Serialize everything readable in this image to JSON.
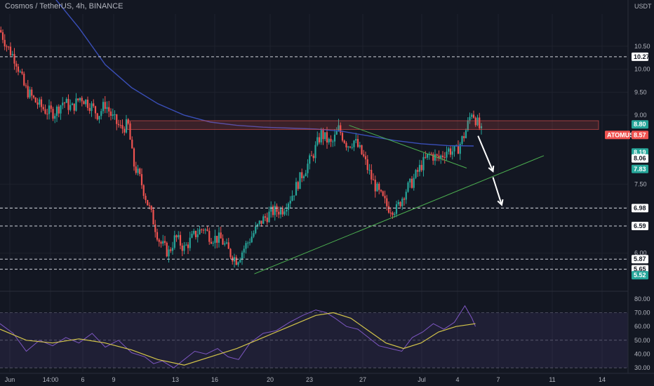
{
  "header": {
    "title": "Cosmos / TetherUS, 4h, BINANCE",
    "currency": "USDT"
  },
  "colors": {
    "background": "#131722",
    "grid": "#1e222d",
    "bull": "#26a69a",
    "bear": "#ef5350",
    "ma": "#3a4fb8",
    "trendline": "#4caf50",
    "zone": "#ef5350",
    "rsi": "#7e57c2",
    "rsi_ma": "#d4c54a",
    "rsi_band": "#7e57c2",
    "arrow": "#ffffff"
  },
  "price_axis": {
    "ticks": [
      "10.50",
      "10.00",
      "9.50",
      "9.00",
      "7.50",
      "7.00",
      "6.00"
    ],
    "tick_values": [
      10.5,
      10.0,
      9.5,
      9.0,
      7.5,
      7.0,
      6.0
    ],
    "ylim": [
      5.4,
      11.2
    ]
  },
  "rsi_axis": {
    "ticks": [
      "80.00",
      "70.00",
      "60.00",
      "50.00",
      "40.00",
      "30.00"
    ],
    "tick_values": [
      80,
      70,
      60,
      50,
      40,
      30
    ],
    "ylim": [
      27,
      84
    ]
  },
  "time_axis": {
    "labels": [
      "Jun",
      "14:00",
      "6",
      "9",
      "13",
      "16",
      "20",
      "23",
      "27",
      "Jul",
      "4",
      "7",
      "11",
      "14"
    ]
  },
  "price_tags": [
    {
      "label": "10.27",
      "value": 10.27,
      "style": "white",
      "dashed": true
    },
    {
      "label": "8.80",
      "value": 8.8,
      "style": "green",
      "dashed": false
    },
    {
      "label": "ATOMUSDT",
      "value": 8.57,
      "style": "red-name",
      "dashed": false
    },
    {
      "label": "8.57",
      "value": 8.57,
      "style": "red",
      "dashed": false
    },
    {
      "label": "8.19",
      "value": 8.19,
      "style": "green",
      "dashed": false
    },
    {
      "label": "8.06",
      "value": 8.06,
      "style": "white",
      "dashed": false
    },
    {
      "label": "7.83",
      "value": 7.83,
      "style": "green",
      "dashed": false
    },
    {
      "label": "6.98",
      "value": 6.98,
      "style": "white",
      "dashed": true
    },
    {
      "label": "6.59",
      "value": 6.59,
      "style": "white",
      "dashed": true
    },
    {
      "label": "5.87",
      "value": 5.87,
      "style": "white",
      "dashed": true
    },
    {
      "label": "5.65",
      "value": 5.65,
      "style": "white",
      "dashed": true
    },
    {
      "label": "5.52",
      "value": 5.52,
      "style": "green",
      "dashed": false
    }
  ],
  "chart_data": {
    "type": "candlestick",
    "title": "Cosmos / TetherUS, 4h, BINANCE",
    "price_path": [
      [
        0,
        10.85
      ],
      [
        8,
        10.5
      ],
      [
        18,
        10.2
      ],
      [
        28,
        9.6
      ],
      [
        40,
        9.3
      ],
      [
        52,
        9.1
      ],
      [
        62,
        9.05
      ],
      [
        72,
        9.3
      ],
      [
        82,
        9.15
      ],
      [
        92,
        9.4
      ],
      [
        104,
        9.2
      ],
      [
        112,
        9.0
      ],
      [
        120,
        9.25
      ],
      [
        128,
        8.95
      ],
      [
        138,
        8.7
      ],
      [
        146,
        8.8
      ],
      [
        152,
        7.95
      ],
      [
        160,
        7.6
      ],
      [
        168,
        7.1
      ],
      [
        174,
        6.75
      ],
      [
        182,
        6.25
      ],
      [
        192,
        6.0
      ],
      [
        200,
        6.35
      ],
      [
        210,
        6.1
      ],
      [
        222,
        6.4
      ],
      [
        232,
        6.55
      ],
      [
        240,
        6.35
      ],
      [
        252,
        6.3
      ],
      [
        262,
        6.0
      ],
      [
        270,
        5.85
      ],
      [
        278,
        6.1
      ],
      [
        288,
        6.4
      ],
      [
        298,
        6.7
      ],
      [
        310,
        6.9
      ],
      [
        322,
        6.95
      ],
      [
        334,
        7.3
      ],
      [
        344,
        7.7
      ],
      [
        356,
        8.1
      ],
      [
        366,
        8.6
      ],
      [
        378,
        8.35
      ],
      [
        386,
        8.7
      ],
      [
        396,
        8.35
      ],
      [
        404,
        8.45
      ],
      [
        414,
        8.1
      ],
      [
        424,
        7.6
      ],
      [
        432,
        7.3
      ],
      [
        442,
        7.0
      ],
      [
        452,
        6.95
      ],
      [
        462,
        7.35
      ],
      [
        470,
        7.55
      ],
      [
        480,
        7.9
      ],
      [
        490,
        8.15
      ],
      [
        500,
        8.05
      ],
      [
        510,
        8.25
      ],
      [
        520,
        8.2
      ],
      [
        530,
        8.6
      ],
      [
        538,
        9.1
      ],
      [
        546,
        8.75
      ],
      [
        550,
        8.57
      ]
    ],
    "ma_path": [
      [
        30,
        12.5
      ],
      [
        60,
        11.6
      ],
      [
        90,
        10.9
      ],
      [
        120,
        10.1
      ],
      [
        150,
        9.6
      ],
      [
        180,
        9.25
      ],
      [
        210,
        9.0
      ],
      [
        240,
        8.85
      ],
      [
        270,
        8.78
      ],
      [
        300,
        8.74
      ],
      [
        330,
        8.72
      ],
      [
        360,
        8.7
      ],
      [
        390,
        8.65
      ],
      [
        420,
        8.55
      ],
      [
        450,
        8.45
      ],
      [
        480,
        8.38
      ],
      [
        510,
        8.34
      ],
      [
        540,
        8.33
      ]
    ],
    "resistance_zone": [
      8.69,
      8.88
    ],
    "trendlines": [
      {
        "from": [
          290,
          5.55
        ],
        "to": [
          620,
          8.12
        ]
      },
      {
        "from": [
          398,
          8.78
        ],
        "to": [
          532,
          7.85
        ]
      }
    ],
    "projection_arrows": [
      {
        "from": [
          545,
          8.55
        ],
        "to": [
          562,
          7.78
        ]
      },
      {
        "from": [
          562,
          7.65
        ],
        "to": [
          572,
          7.05
        ]
      }
    ],
    "rsi_path": [
      [
        0,
        62
      ],
      [
        15,
        55
      ],
      [
        30,
        42
      ],
      [
        45,
        50
      ],
      [
        60,
        46
      ],
      [
        75,
        52
      ],
      [
        90,
        48
      ],
      [
        105,
        55
      ],
      [
        120,
        45
      ],
      [
        135,
        50
      ],
      [
        150,
        41
      ],
      [
        165,
        38
      ],
      [
        175,
        33
      ],
      [
        185,
        35
      ],
      [
        198,
        30
      ],
      [
        210,
        36
      ],
      [
        222,
        42
      ],
      [
        235,
        40
      ],
      [
        248,
        44
      ],
      [
        260,
        38
      ],
      [
        272,
        36
      ],
      [
        285,
        48
      ],
      [
        300,
        55
      ],
      [
        315,
        57
      ],
      [
        330,
        63
      ],
      [
        345,
        68
      ],
      [
        360,
        72
      ],
      [
        372,
        70
      ],
      [
        382,
        66
      ],
      [
        395,
        60
      ],
      [
        408,
        58
      ],
      [
        420,
        52
      ],
      [
        432,
        46
      ],
      [
        445,
        44
      ],
      [
        458,
        42
      ],
      [
        470,
        52
      ],
      [
        482,
        56
      ],
      [
        494,
        62
      ],
      [
        506,
        58
      ],
      [
        518,
        63
      ],
      [
        530,
        75
      ],
      [
        538,
        66
      ],
      [
        542,
        60
      ]
    ],
    "rsi_ma_path": [
      [
        0,
        58
      ],
      [
        30,
        50
      ],
      [
        60,
        48
      ],
      [
        90,
        51
      ],
      [
        120,
        48
      ],
      [
        150,
        43
      ],
      [
        180,
        36
      ],
      [
        210,
        32
      ],
      [
        240,
        38
      ],
      [
        270,
        44
      ],
      [
        300,
        52
      ],
      [
        330,
        60
      ],
      [
        360,
        68
      ],
      [
        380,
        70
      ],
      [
        400,
        66
      ],
      [
        420,
        57
      ],
      [
        440,
        48
      ],
      [
        460,
        44
      ],
      [
        480,
        48
      ],
      [
        500,
        56
      ],
      [
        520,
        60
      ],
      [
        542,
        62
      ]
    ],
    "rsi_band": [
      30,
      70
    ]
  }
}
